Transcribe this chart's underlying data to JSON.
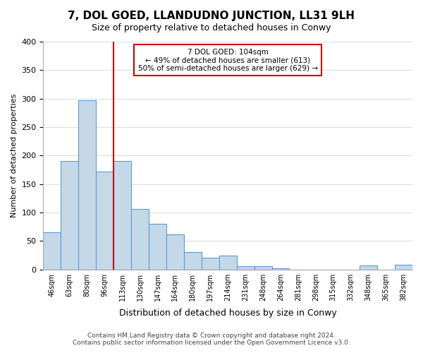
{
  "title": "7, DOL GOED, LLANDUDNO JUNCTION, LL31 9LH",
  "subtitle": "Size of property relative to detached houses in Conwy",
  "xlabel": "Distribution of detached houses by size in Conwy",
  "ylabel": "Number of detached properties",
  "categories": [
    "46sqm",
    "63sqm",
    "80sqm",
    "96sqm",
    "113sqm",
    "130sqm",
    "147sqm",
    "164sqm",
    "180sqm",
    "197sqm",
    "214sqm",
    "231sqm",
    "248sqm",
    "264sqm",
    "281sqm",
    "298sqm",
    "315sqm",
    "332sqm",
    "348sqm",
    "365sqm",
    "382sqm"
  ],
  "values": [
    65,
    190,
    297,
    172,
    190,
    106,
    80,
    62,
    31,
    21,
    25,
    6,
    6,
    2,
    0,
    0,
    0,
    0,
    7,
    0,
    8
  ],
  "bar_color": "#c5d8e8",
  "bar_edge_color": "#5b9bd5",
  "vline_x": 3.5,
  "vline_color": "#cc0000",
  "annotation_title": "7 DOL GOED: 104sqm",
  "annotation_line1": "← 49% of detached houses are smaller (613)",
  "annotation_line2": "50% of semi-detached houses are larger (629) →",
  "annotation_box_color": "#ffffff",
  "annotation_box_edge": "#cc0000",
  "ylim": [
    0,
    400
  ],
  "yticks": [
    0,
    50,
    100,
    150,
    200,
    250,
    300,
    350,
    400
  ],
  "footer_line1": "Contains HM Land Registry data © Crown copyright and database right 2024.",
  "footer_line2": "Contains public sector information licensed under the Open Government Licence v3.0.",
  "bg_color": "#ffffff",
  "grid_color": "#dddddd"
}
